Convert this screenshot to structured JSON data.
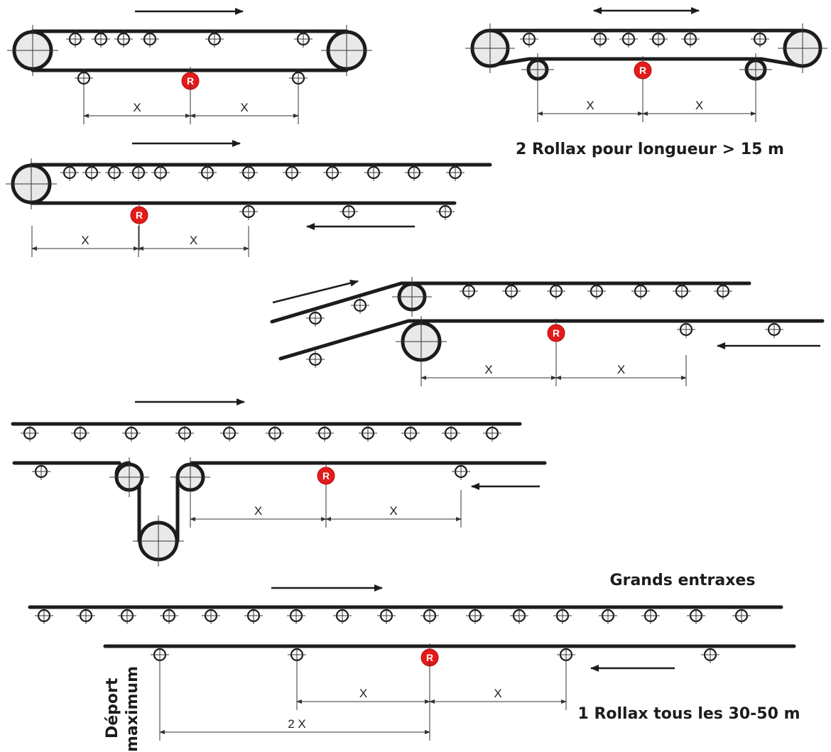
{
  "rollax_marker": "R",
  "dim_label": "X",
  "dim_label_double": "2 X",
  "labels": {
    "two_rollax": "2 Rollax pour longueur > 15 m",
    "grands_entraxes": "Grands entraxes",
    "one_rollax": "1 Rollax tous les 30-50 m",
    "deport_line1": "Déport",
    "deport_line2": "maximum"
  },
  "colors": {
    "rollax": "#e21b1b",
    "belt": "#1c1c1c",
    "pulley_fill": "#e9e9e9"
  }
}
